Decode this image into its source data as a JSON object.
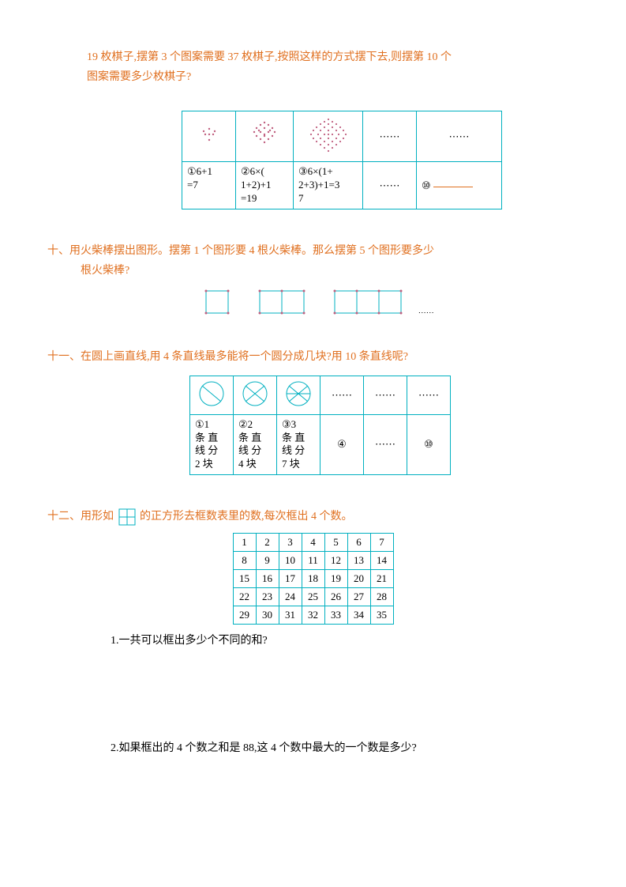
{
  "q9": {
    "intro_line1": "19 枚棋子,摆第 3 个图案需要 37 枚棋子,按照这样的方式摆下去,则摆第 10 个",
    "intro_line2": "图案需要多少枚棋子?",
    "cells": {
      "c1": "①6+1=7",
      "c2": "②6×(1+2)+1=19",
      "c3": "③6×(1+2+3)+1=37",
      "c4": "⋯⋯",
      "c5": "⋯⋯",
      "c6": "⑩"
    },
    "hex_color": "#c06080"
  },
  "q10": {
    "title": "十、用火柴棒摆出图形。摆第 1 个图形要 4 根火柴棒。那么摆第 5 个图形要多少",
    "title2": "根火柴棒?",
    "dots": "⋯⋯",
    "square_border": "#00b0c0",
    "dot_color": "#c06080"
  },
  "q11": {
    "title": "十一、在圆上画直线,用 4 条直线最多能将一个圆分成几块?用 10 条直线呢?",
    "cells": {
      "t1": "①1条直线分2块",
      "t2": "②2条直线分4块",
      "t3": "③3条直线分7块",
      "t4": "④",
      "t5": "⋯⋯",
      "t6": "⑩",
      "d4": "⋯⋯",
      "d5": "⋯⋯",
      "d6": "⋯⋯"
    },
    "circle_stroke": "#00b0c0"
  },
  "q12": {
    "title_a": "十二、用形如",
    "title_b": "的正方形去框数表里的数,每次框出 4 个数。",
    "grid": [
      [
        1,
        2,
        3,
        4,
        5,
        6,
        7
      ],
      [
        8,
        9,
        10,
        11,
        12,
        13,
        14
      ],
      [
        15,
        16,
        17,
        18,
        19,
        20,
        21
      ],
      [
        22,
        23,
        24,
        25,
        26,
        27,
        28
      ],
      [
        29,
        30,
        31,
        32,
        33,
        34,
        35
      ]
    ],
    "sub1": "1.一共可以框出多少个不同的和?",
    "sub2": "2.如果框出的 4 个数之和是 88,这 4 个数中最大的一个数是多少?"
  }
}
